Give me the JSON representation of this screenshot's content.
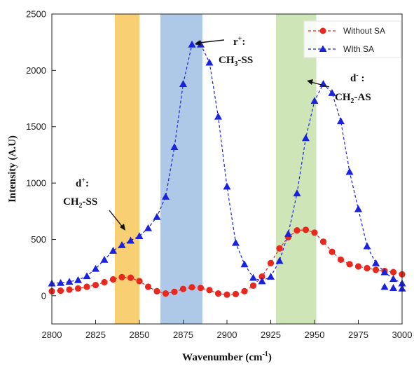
{
  "chart_data": {
    "type": "line",
    "title": "",
    "xlabel": "Wavenumber (cm",
    "xlabel_sup": "-1",
    "xlabel_tail": ")",
    "ylabel": "Intensity (A.U)",
    "xlim": [
      2800,
      3000
    ],
    "ylim": [
      -250,
      2500
    ],
    "xticks": [
      2800,
      2825,
      2850,
      2875,
      2900,
      2925,
      2950,
      2975,
      3000
    ],
    "yticks": [
      0,
      500,
      1000,
      1500,
      2000,
      2500
    ],
    "grid": false,
    "legend_position": "top-right",
    "bands": [
      {
        "x0": 2836,
        "x1": 2850,
        "color": "#f7c75a"
      },
      {
        "x0": 2862,
        "x1": 2886,
        "color": "#9fc0e3"
      },
      {
        "x0": 2928,
        "x1": 2951,
        "color": "#c5e0ab"
      }
    ],
    "series": [
      {
        "name": "Without SA",
        "color": "#e8281e",
        "marker": "circle",
        "x": [
          2800,
          2805,
          2810,
          2815,
          2820,
          2825,
          2830,
          2835,
          2840,
          2845,
          2850,
          2855,
          2860,
          2865,
          2870,
          2875,
          2880,
          2885,
          2890,
          2895,
          2900,
          2905,
          2910,
          2915,
          2920,
          2925,
          2930,
          2935,
          2940,
          2945,
          2950,
          2955,
          2960,
          2965,
          2970,
          2975,
          2980,
          2985,
          2990,
          2995,
          3000
        ],
        "y": [
          40,
          45,
          55,
          65,
          80,
          95,
          120,
          145,
          165,
          160,
          130,
          80,
          40,
          20,
          35,
          60,
          75,
          70,
          50,
          20,
          10,
          15,
          40,
          90,
          170,
          290,
          420,
          520,
          580,
          585,
          560,
          480,
          390,
          320,
          280,
          260,
          245,
          230,
          220,
          210,
          190
        ]
      },
      {
        "name": "WIth SA",
        "color": "#1a22e0",
        "marker": "triangle",
        "x": [
          2800,
          2805,
          2810,
          2815,
          2820,
          2825,
          2830,
          2835,
          2840,
          2845,
          2850,
          2855,
          2860,
          2865,
          2870,
          2875,
          2880,
          2885,
          2890,
          2895,
          2900,
          2905,
          2910,
          2915,
          2920,
          2925,
          2930,
          2935,
          2940,
          2945,
          2950,
          2955,
          2960,
          2965,
          2970,
          2975,
          2980,
          2985,
          2990,
          2995,
          3000
        ],
        "y": [
          110,
          115,
          125,
          140,
          175,
          240,
          320,
          400,
          450,
          490,
          530,
          600,
          700,
          880,
          1320,
          1880,
          2230,
          2230,
          2070,
          1590,
          970,
          470,
          280,
          160,
          130,
          170,
          310,
          550,
          910,
          1400,
          1730,
          1880,
          1800,
          1550,
          1100,
          770,
          440,
          290,
          210,
          150,
          110
        ]
      }
    ],
    "extra_points": [
      {
        "series": "WIth SA",
        "x": [
          2990,
          2995,
          3000
        ],
        "y": [
          80,
          70,
          65
        ]
      }
    ],
    "annotations": [
      {
        "id": "d_plus",
        "line1_base": "d",
        "line1_sup": "+",
        "line1_tail": ":",
        "line2_a": "CH",
        "line2_sub": "2",
        "line2_b": "-SS"
      },
      {
        "id": "r_plus",
        "line1_base": "r",
        "line1_sup": "+",
        "line1_tail": ":",
        "line2_a": "CH",
        "line2_sub": "3",
        "line2_b": "-SS"
      },
      {
        "id": "d_minus",
        "line1_base": "d",
        "line1_sup": "-",
        "line1_tail": " :",
        "line2_a": "CH",
        "line2_sub": "2",
        "line2_b": "-AS"
      }
    ]
  }
}
